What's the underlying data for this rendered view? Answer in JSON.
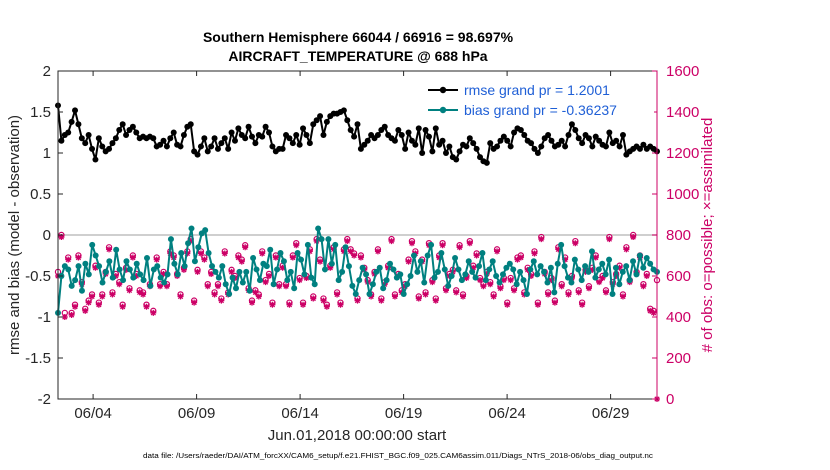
{
  "chart_data": {
    "type": "line",
    "title": "Southern Hemisphere 66044 / 66916 = 98.697%",
    "subtitle": "AIRCRAFT_TEMPERATURE @ 688 hPa",
    "xlabel": "Jun.01,2018 00:00:00 start",
    "ylabel": "rmse and bias (model - observation)",
    "ylabel_right": "# of obs: o=possible; ×=assimilated",
    "footnote": "data file: /Users/raeder/DAI/ATM_forcXX/CAM6_setup/f.e21.FHIST_BGC.f09_025.CAM6assim.011/Diags_NTrS_2018-06/obs_diag_output.nc",
    "xlim": [
      1,
      31
    ],
    "x_ticks": [
      4,
      9,
      14,
      19,
      24,
      29
    ],
    "x_tick_labels": [
      "06/04",
      "06/09",
      "06/14",
      "06/19",
      "06/24",
      "06/29"
    ],
    "ylim": [
      -2,
      2
    ],
    "y_ticks": [
      "-2",
      "-1.5",
      "-1",
      "-0.5",
      "0",
      "0.5",
      "1",
      "1.5",
      "2"
    ],
    "ylim_right": [
      0,
      1600
    ],
    "y_ticks_right": [
      "0",
      "200",
      "400",
      "600",
      "800",
      "1000",
      "1200",
      "1400",
      "1600"
    ],
    "legend": [
      {
        "label": "rmse grand pr = 1.2001",
        "color": "#000000"
      },
      {
        "label": "bias grand pr = -0.36237",
        "color": "#008080"
      }
    ],
    "legend_position": "top-right",
    "series": [
      {
        "name": "rmse",
        "axis": "left",
        "color": "#000000",
        "marker": "o",
        "values": [
          1.58,
          1.15,
          1.22,
          1.25,
          1.38,
          1.52,
          1.35,
          1.18,
          1.12,
          1.22,
          1.05,
          0.92,
          1.18,
          1.08,
          1.02,
          1.05,
          1.12,
          1.18,
          1.28,
          1.35,
          1.22,
          1.28,
          1.32,
          1.25,
          1.18,
          1.2,
          1.18,
          1.2,
          1.18,
          1.08,
          1.1,
          1.15,
          1.08,
          1.18,
          1.25,
          1.1,
          1.08,
          1.22,
          1.32,
          1.35,
          1.02,
          0.98,
          1.08,
          1.18,
          1.02,
          1.08,
          1.18,
          1.05,
          1.12,
          1.18,
          1.05,
          1.25,
          1.15,
          1.3,
          1.22,
          1.18,
          1.32,
          1.2,
          1.12,
          1.22,
          1.2,
          1.32,
          1.25,
          1.08,
          1.02,
          1.05,
          1.05,
          1.22,
          1.18,
          1.12,
          1.22,
          1.1,
          1.3,
          1.22,
          1.12,
          1.35,
          1.4,
          1.45,
          1.22,
          1.38,
          1.45,
          1.48,
          1.48,
          1.5,
          1.52,
          1.4,
          1.28,
          1.2,
          1.35,
          1.05,
          1.1,
          1.15,
          1.22,
          1.18,
          1.22,
          1.28,
          1.32,
          1.22,
          1.18,
          1.15,
          1.28,
          1.22,
          1.05,
          1.25,
          1.15,
          1.1,
          1.3,
          1.0,
          1.28,
          1.2,
          1.02,
          1.3,
          1.1,
          1.15,
          1.0,
          1.08,
          0.95,
          0.92,
          1.02,
          1.1,
          1.08,
          1.18,
          1.12,
          1.05,
          0.95,
          0.9,
          0.88,
          1.12,
          1.05,
          1.08,
          1.15,
          1.2,
          1.15,
          1.08,
          1.25,
          1.3,
          1.28,
          1.22,
          1.15,
          1.12,
          1.05,
          1.0,
          1.08,
          1.18,
          1.22,
          1.15,
          1.08,
          1.1,
          1.15,
          1.08,
          1.22,
          1.35,
          1.28,
          1.18,
          1.12,
          1.22,
          1.18,
          1.08,
          1.2,
          1.15,
          1.1,
          1.08,
          1.25,
          1.12,
          1.15,
          1.08,
          1.22,
          0.98,
          1.02,
          1.05,
          1.08,
          1.05,
          1.1,
          1.05,
          1.08,
          1.05,
          1.02
        ]
      },
      {
        "name": "bias",
        "axis": "left",
        "color": "#008080",
        "marker": "o",
        "values": [
          -0.95,
          -0.5,
          -0.38,
          -0.42,
          -0.62,
          -0.55,
          -0.38,
          -0.68,
          -0.35,
          -0.48,
          -0.12,
          -0.25,
          -0.38,
          -0.58,
          -0.45,
          -0.32,
          -0.52,
          -0.18,
          -0.42,
          -0.55,
          -0.32,
          -0.42,
          -0.52,
          -0.35,
          -0.48,
          -0.55,
          -0.28,
          -0.62,
          -0.42,
          -0.38,
          -0.52,
          -0.58,
          -0.48,
          -0.05,
          -0.35,
          -0.48,
          -0.22,
          -0.38,
          -0.1,
          0.08,
          -0.32,
          -0.15,
          0.02,
          0.06,
          -0.22,
          -0.38,
          -0.45,
          -0.52,
          -0.38,
          -0.6,
          -0.72,
          -0.52,
          -0.65,
          -0.45,
          -0.58,
          -0.45,
          -0.68,
          -0.28,
          -0.42,
          -0.55,
          -0.35,
          -0.38,
          -0.18,
          -0.6,
          -0.42,
          -0.22,
          -0.32,
          -0.55,
          -0.45,
          -0.65,
          -0.22,
          -0.3,
          -0.48,
          -0.12,
          -0.52,
          -0.6,
          0.08,
          -0.05,
          -0.42,
          -0.05,
          -0.35,
          -0.12,
          -0.55,
          -0.45,
          -0.15,
          -0.38,
          -0.62,
          -0.72,
          -0.55,
          -0.4,
          -0.48,
          -0.72,
          -0.6,
          -0.45,
          -0.4,
          -0.65,
          -0.55,
          -0.35,
          -0.42,
          -0.52,
          -0.48,
          -0.72,
          -0.6,
          -0.5,
          -0.25,
          -0.45,
          -0.32,
          -0.58,
          -0.25,
          -0.12,
          -0.52,
          -0.45,
          -0.22,
          -0.42,
          -0.62,
          -0.5,
          -0.28,
          -0.42,
          -0.55,
          -0.48,
          -0.32,
          -0.45,
          -0.52,
          -0.38,
          -0.22,
          -0.55,
          -0.42,
          -0.32,
          -0.5,
          -0.58,
          -0.48,
          -0.4,
          -0.35,
          -0.42,
          -0.6,
          -0.45,
          -0.55,
          -0.72,
          -0.42,
          -0.32,
          -0.48,
          -0.38,
          -0.45,
          -0.58,
          -0.4,
          -0.7,
          -0.35,
          -0.12,
          -0.38,
          -0.52,
          -0.58,
          -0.3,
          -0.42,
          -0.55,
          -0.38,
          -0.45,
          -0.2,
          -0.52,
          -0.42,
          -0.35,
          -0.48,
          -0.3,
          -0.72,
          -0.4,
          -0.6,
          -0.45,
          -0.38,
          -0.55,
          -0.32,
          -0.48,
          -0.25,
          -0.4,
          -0.28,
          -0.35,
          -0.42,
          -0.45
        ]
      },
      {
        "name": "possible",
        "axis": "right",
        "color": "#cc0066",
        "marker": "o",
        "values": [
          620,
          800,
          420,
          690,
          420,
          460,
          700,
          570,
          440,
          480,
          510,
          650,
          470,
          510,
          620,
          740,
          520,
          610,
          570,
          460,
          640,
          540,
          700,
          610,
          530,
          520,
          460,
          560,
          430,
          690,
          560,
          620,
          560,
          720,
          700,
          610,
          510,
          640,
          720,
          780,
          480,
          630,
          720,
          690,
          560,
          620,
          520,
          560,
          490,
          720,
          520,
          630,
          600,
          700,
          680,
          750,
          540,
          480,
          530,
          510,
          720,
          580,
          610,
          470,
          700,
          560,
          650,
          560,
          470,
          700,
          760,
          590,
          470,
          600,
          730,
          500,
          780,
          680,
          490,
          460,
          650,
          740,
          520,
          470,
          730,
          780,
          730,
          710,
          490,
          700,
          640,
          580,
          510,
          620,
          730,
          490,
          570,
          650,
          780,
          510,
          610,
          530,
          560,
          680,
          770,
          720,
          500,
          680,
          520,
          760,
          580,
          490,
          700,
          760,
          540,
          610,
          630,
          530,
          750,
          510,
          600,
          770,
          650,
          710,
          590,
          560,
          620,
          570,
          510,
          730,
          550,
          590,
          470,
          590,
          540,
          690,
          700,
          520,
          640,
          610,
          720,
          470,
          790,
          620,
          520,
          590,
          480,
          740,
          560,
          690,
          520,
          600,
          770,
          530,
          470,
          630,
          550,
          640,
          700,
          580,
          600,
          530,
          790,
          570,
          610,
          650,
          510,
          740,
          580,
          800,
          620,
          700,
          560,
          610,
          440,
          430,
          580
        ]
      },
      {
        "name": "assimilated",
        "axis": "right",
        "color": "#cc0066",
        "marker": "x",
        "values": [
          600,
          790,
          400,
          680,
          410,
          450,
          690,
          560,
          430,
          470,
          500,
          640,
          460,
          500,
          610,
          730,
          510,
          600,
          560,
          450,
          630,
          530,
          690,
          600,
          520,
          510,
          450,
          550,
          420,
          680,
          550,
          610,
          550,
          710,
          690,
          600,
          500,
          630,
          710,
          770,
          470,
          620,
          710,
          680,
          550,
          610,
          510,
          550,
          480,
          710,
          510,
          620,
          590,
          690,
          670,
          740,
          530,
          470,
          520,
          500,
          710,
          570,
          600,
          460,
          690,
          550,
          640,
          550,
          460,
          690,
          750,
          580,
          460,
          590,
          720,
          490,
          770,
          670,
          480,
          450,
          640,
          730,
          510,
          460,
          720,
          770,
          720,
          700,
          480,
          690,
          630,
          570,
          500,
          610,
          720,
          480,
          560,
          640,
          770,
          500,
          600,
          520,
          550,
          670,
          760,
          710,
          490,
          670,
          510,
          750,
          570,
          480,
          690,
          750,
          530,
          600,
          620,
          520,
          740,
          500,
          590,
          760,
          640,
          700,
          580,
          550,
          610,
          560,
          500,
          720,
          540,
          580,
          460,
          580,
          530,
          680,
          690,
          510,
          630,
          600,
          710,
          460,
          780,
          610,
          510,
          580,
          470,
          730,
          550,
          680,
          510,
          590,
          760,
          520,
          460,
          620,
          540,
          630,
          690,
          570,
          590,
          520,
          780,
          560,
          600,
          640,
          500,
          730,
          570,
          790,
          610,
          690,
          550,
          600,
          430,
          420,
          0
        ]
      }
    ]
  }
}
